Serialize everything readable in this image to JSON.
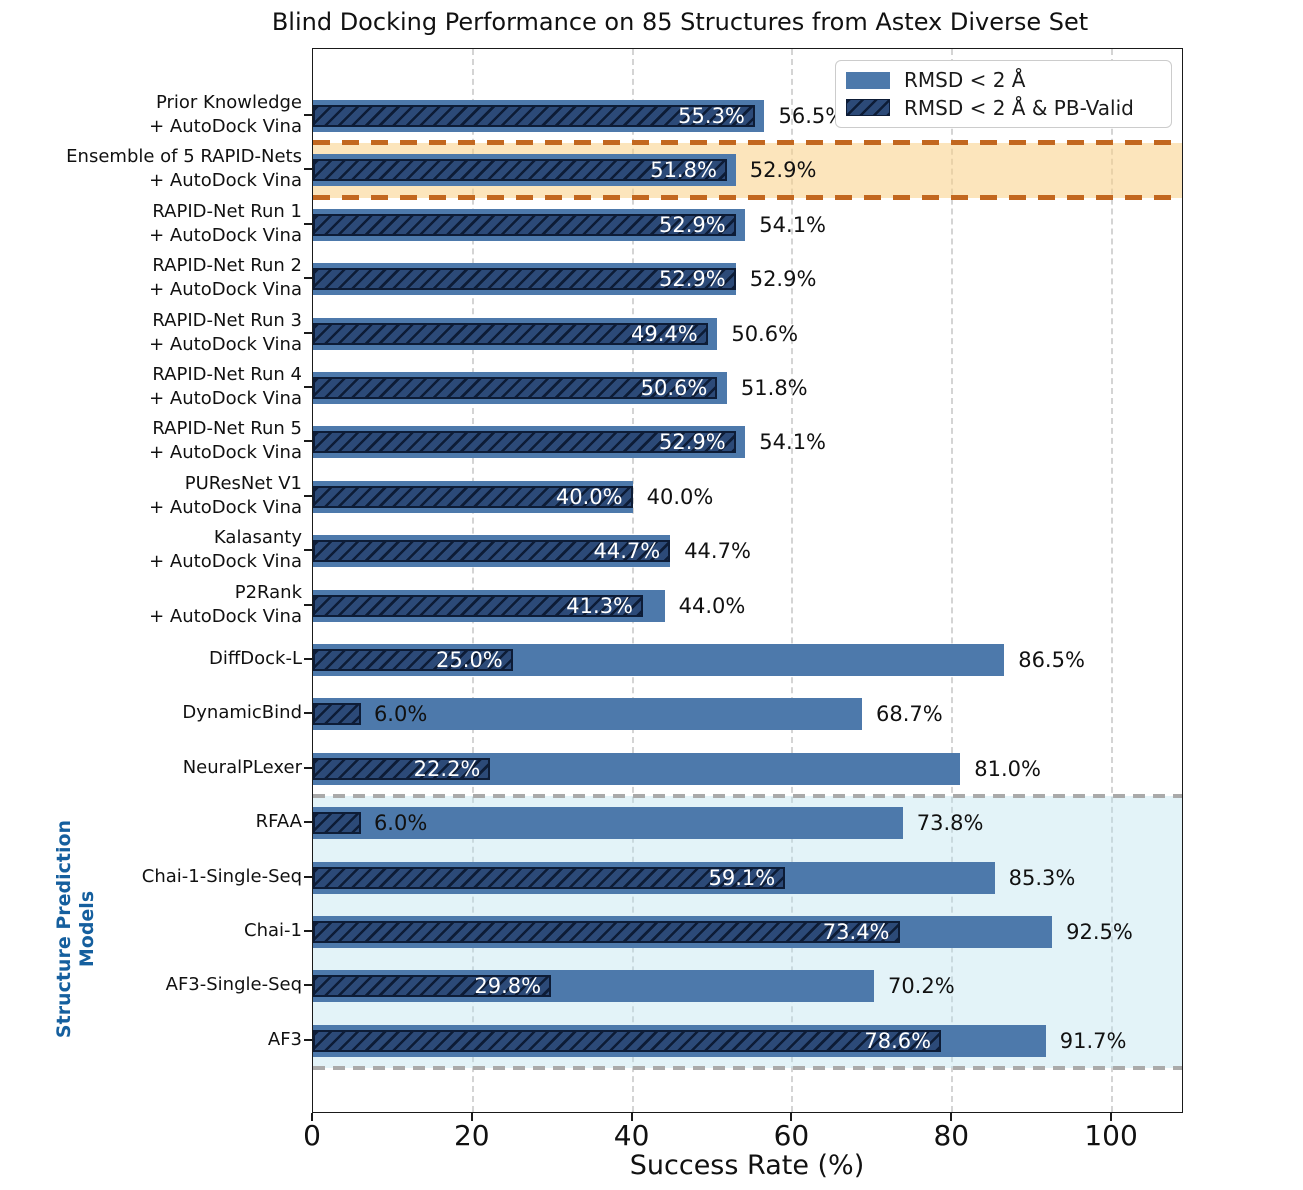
{
  "chart_data": {
    "type": "bar",
    "orientation": "horizontal",
    "title": "Blind Docking Performance on 85 Structures from Astex Diverse Set",
    "xlabel": "Success Rate (%)",
    "ylabel": "",
    "xlim": [
      0,
      109
    ],
    "x_ticks": [
      0,
      20,
      40,
      60,
      80,
      100
    ],
    "grid": true,
    "legend_position": "upper right",
    "categories": [
      "Prior Knowledge\n+ AutoDock Vina",
      "Ensemble of 5 RAPID-Nets\n+ AutoDock Vina",
      "RAPID-Net Run 1\n+ AutoDock Vina",
      "RAPID-Net Run 2\n+ AutoDock Vina",
      "RAPID-Net Run 3\n+ AutoDock Vina",
      "RAPID-Net Run 4\n+ AutoDock Vina",
      "RAPID-Net Run 5\n+ AutoDock Vina",
      "PUResNet V1\n+ AutoDock Vina",
      "Kalasanty\n+ AutoDock Vina",
      "P2Rank\n+ AutoDock Vina",
      "DiffDock-L",
      "DynamicBind",
      "NeuralPLexer",
      "RFAA",
      "Chai-1-Single-Seq",
      "Chai-1",
      "AF3-Single-Seq",
      "AF3"
    ],
    "series": [
      {
        "name": "RMSD < 2 Å",
        "values": [
          56.5,
          52.9,
          54.1,
          52.9,
          50.6,
          51.8,
          54.1,
          40.0,
          44.7,
          44.0,
          86.5,
          68.7,
          81.0,
          73.8,
          85.3,
          92.5,
          70.2,
          91.7
        ]
      },
      {
        "name": "RMSD < 2 Å & PB-Valid",
        "values": [
          55.3,
          51.8,
          52.9,
          52.9,
          49.4,
          50.6,
          52.9,
          40.0,
          44.7,
          41.3,
          25.0,
          6.0,
          22.2,
          6.0,
          59.1,
          73.4,
          29.8,
          78.6
        ]
      }
    ],
    "pb_label_outside_rows": [
      11,
      13
    ],
    "value_suffix": "%",
    "group_label": "Structure Prediction\nModels",
    "highlights": [
      {
        "name": "ensemble-highlight",
        "row_start": 1,
        "row_end": 1,
        "fill": "rgba(250, 208, 133, 0.55)",
        "border": "#c2671f",
        "border_weight": 5
      },
      {
        "name": "structure-prediction-highlight",
        "row_start": 13,
        "row_end": 17,
        "fill": "rgba(186, 224, 238, 0.40)",
        "border": "#aaaaaa",
        "border_weight": 4
      }
    ]
  },
  "colors": {
    "total_bar": "#4d79ab",
    "pb_bar_fill": "#2c4a78",
    "pb_hatch_line": "#0d1c36",
    "grid": "#d4d4d4",
    "frame": "#1a1a1a",
    "text": "#111111",
    "value_label_inside": "#ffffff",
    "group_label": "#155f9e"
  }
}
